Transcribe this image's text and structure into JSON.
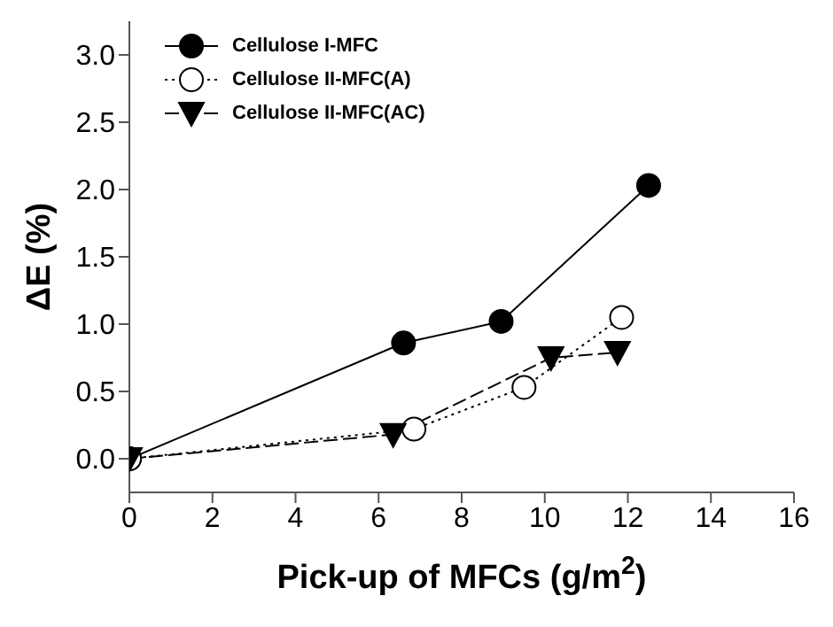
{
  "chart_data": {
    "type": "line",
    "xlabel": "Pick-up of MFCs (g/m$^{2}$)",
    "ylabel": "ΔE (%)",
    "xlim": [
      0,
      16
    ],
    "xticks": [
      0,
      2,
      4,
      6,
      8,
      10,
      12,
      14,
      16
    ],
    "ylim": [
      -0.25,
      3.25
    ],
    "yticks": [
      {
        "value": 0,
        "label": "0.0"
      },
      {
        "value": 0.5,
        "label": "0.5"
      },
      {
        "value": 1,
        "label": "1.0"
      },
      {
        "value": 1.5,
        "label": "1.5"
      },
      {
        "value": 2,
        "label": "2.0"
      },
      {
        "value": 2.5,
        "label": "2.5"
      },
      {
        "value": 3,
        "label": "3.0"
      }
    ],
    "grid": false,
    "legend": "top left",
    "series": [
      {
        "name": "Cellulose I-MFC",
        "color": "#000000",
        "marker": "circle",
        "line_style": "solid",
        "x": [
          0,
          6.6,
          8.95,
          12.5
        ],
        "values": [
          0,
          0.86,
          1.02,
          2.03
        ]
      },
      {
        "name": "Cellulose II-MFC(A)",
        "color": "#ffffff",
        "marker": "circle",
        "line_style": "dotted",
        "x": [
          0,
          6.85,
          9.5,
          11.85
        ],
        "values": [
          0,
          0.22,
          0.53,
          1.05
        ]
      },
      {
        "name": "Cellulose II-MFC(AC)",
        "color": "#000000",
        "marker": "triangle",
        "line_style": "dashed",
        "x": [
          0,
          6.35,
          10.15,
          11.75
        ],
        "values": [
          0,
          0.18,
          0.75,
          0.79
        ]
      }
    ]
  }
}
